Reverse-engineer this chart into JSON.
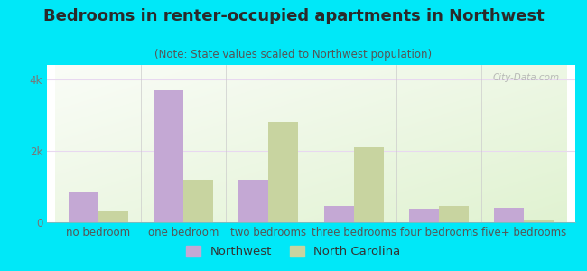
{
  "title": "Bedrooms in renter-occupied apartments in Northwest",
  "subtitle": "(Note: State values scaled to Northwest population)",
  "categories": [
    "no bedroom",
    "one bedroom",
    "two bedrooms",
    "three bedrooms",
    "four bedrooms",
    "five+ bedrooms"
  ],
  "northwest_values": [
    870,
    3700,
    1200,
    450,
    390,
    400
  ],
  "nc_values": [
    300,
    1200,
    2800,
    2100,
    460,
    60
  ],
  "northwest_color": "#c4a8d4",
  "nc_color": "#c8d4a0",
  "ylim": [
    0,
    4400
  ],
  "ytick_labels": [
    "0",
    "2k",
    "4k"
  ],
  "ytick_vals": [
    0,
    2000,
    4000
  ],
  "grid_color": "#e8d8f0",
  "title_fontsize": 13,
  "subtitle_fontsize": 8.5,
  "legend_fontsize": 9.5,
  "tick_fontsize": 8.5,
  "bar_width": 0.35,
  "outer_bg": "#00e8f8",
  "legend_label_nw": "Northwest",
  "legend_label_nc": "North Carolina",
  "watermark": "City-Data.com"
}
